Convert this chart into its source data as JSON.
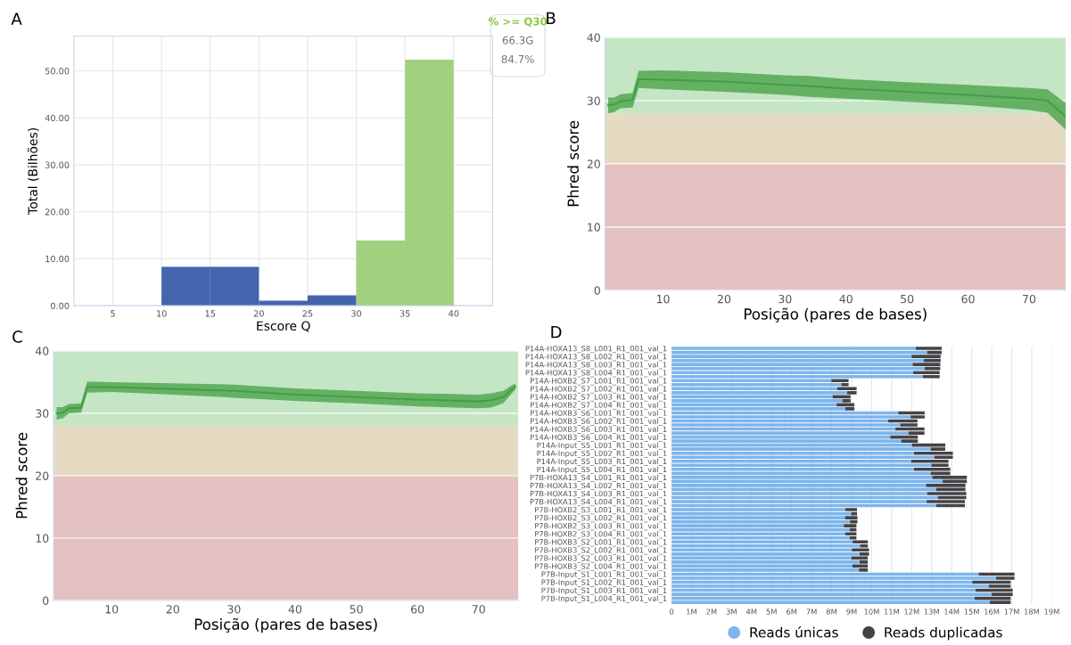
{
  "chart_data": [
    {
      "type": "histogram",
      "title": "A",
      "xlabel": "Escore Q",
      "ylabel": "Total (Bilhões)",
      "bins": [
        10,
        15,
        20,
        25,
        30,
        35,
        40
      ],
      "values": [
        8.3,
        8.3,
        1.1,
        2.2,
        13.9,
        52.4
      ],
      "colors": [
        "#4464ad",
        "#4464ad",
        "#4464ad",
        "#4464ad",
        "#a1d07e",
        "#a1d07e"
      ],
      "xlim": [
        1,
        44
      ],
      "xticks": [
        5,
        10,
        15,
        20,
        25,
        30,
        35,
        40
      ],
      "ylim": [
        0,
        57.4
      ],
      "yticks": [
        {
          "value": 0,
          "label": "0.00"
        },
        {
          "value": 10,
          "label": "10.00"
        },
        {
          "value": 20,
          "label": "20.00"
        },
        {
          "value": 30,
          "label": "30.00"
        },
        {
          "value": 40,
          "label": "40.00"
        },
        {
          "value": 50,
          "label": "50.00"
        }
      ],
      "grid": true,
      "annotations": [
        "% >= Q30",
        "66.3G",
        "84.7%"
      ]
    },
    {
      "type": "line",
      "title": "B",
      "xlabel": "Posição (pares de bases)",
      "ylabel": "Phred score",
      "series": [
        {
          "color": "#449f44",
          "x": [
            1,
            2,
            3,
            5,
            6,
            10,
            20,
            30,
            34,
            40,
            50,
            60,
            70,
            73,
            76
          ],
          "values": [
            29.3,
            29.4,
            29.9,
            30.1,
            33.4,
            33.3,
            33.0,
            32.5,
            32.3,
            31.9,
            31.4,
            30.9,
            30.3,
            30.0,
            27.5
          ],
          "lower": [
            28,
            28.2,
            28.8,
            28.9,
            32,
            31.8,
            31.4,
            30.9,
            30.6,
            30.3,
            29.8,
            29.3,
            28.5,
            28.1,
            25.4
          ],
          "upper": [
            30.5,
            30.5,
            31,
            31.2,
            34.7,
            34.8,
            34.5,
            34,
            33.9,
            33.4,
            32.9,
            32.5,
            32,
            31.8,
            29.6
          ]
        }
      ],
      "bands": [
        {
          "axis": "y",
          "from": 0,
          "to": 20,
          "color": "#e4c1c1"
        },
        {
          "axis": "y",
          "from": 20,
          "to": 28,
          "color": "#e5dbc3"
        },
        {
          "axis": "y",
          "from": 28,
          "to": 40,
          "color": "#c4e6c4"
        }
      ],
      "xlim": [
        0.5,
        76
      ],
      "xticks": [
        10,
        20,
        30,
        40,
        50,
        60,
        70
      ],
      "ylim": [
        0,
        40
      ],
      "yticks": [
        0,
        10,
        20,
        30,
        40
      ],
      "grid": "y"
    },
    {
      "type": "line",
      "title": "C",
      "xlabel": "Posição (pares de bases)",
      "ylabel": "Phred score",
      "series": [
        {
          "color": "#449f44",
          "x": [
            1,
            2,
            3,
            5,
            6,
            10,
            20,
            30,
            40,
            50,
            60,
            70,
            72,
            74,
            76
          ],
          "values": [
            30.0,
            30.1,
            30.8,
            30.9,
            34.2,
            34.2,
            33.9,
            33.6,
            33.0,
            32.6,
            32.2,
            31.9,
            32.1,
            32.6,
            34.3
          ],
          "lower": [
            29,
            29.2,
            30,
            30.1,
            33.3,
            33.4,
            33,
            32.5,
            32,
            31.6,
            31.1,
            30.8,
            30.9,
            31.6,
            33.8
          ],
          "upper": [
            31,
            31,
            31.5,
            31.6,
            35.1,
            35,
            34.8,
            34.6,
            34,
            33.6,
            33.2,
            33,
            33.2,
            33.6,
            34.8
          ]
        }
      ],
      "bands": [
        {
          "axis": "y",
          "from": 0,
          "to": 20,
          "color": "#e4c1c1"
        },
        {
          "axis": "y",
          "from": 20,
          "to": 28,
          "color": "#e5dbc3"
        },
        {
          "axis": "y",
          "from": 28,
          "to": 40,
          "color": "#c4e6c4"
        }
      ],
      "xlim": [
        0.5,
        76.5
      ],
      "xticks": [
        10,
        20,
        30,
        40,
        50,
        60,
        70
      ],
      "ylim": [
        0,
        40
      ],
      "yticks": [
        0,
        10,
        20,
        30,
        40
      ],
      "grid": "y"
    },
    {
      "type": "bar",
      "title": "D",
      "orientation": "horizontal",
      "stacked": true,
      "legend": "bottom",
      "grid": "x",
      "categories": [
        "P14A-HOXA13_S8_L001_R1_001_val_1",
        null,
        "P14A-HOXA13_S8_L002_R1_001_val_1",
        null,
        "P14A-HOXA13_S8_L003_R1_001_val_1",
        null,
        "P14A-HOXA13_S8_L004_R1_001_val_1",
        null,
        "P14A-HOXB2_S7_L001_R1_001_val_1",
        null,
        "P14A-HOXB2_S7_L002_R1_001_val_1",
        null,
        "P14A-HOXB2_S7_L003_R1_001_val_1",
        null,
        "P14A-HOXB2_S7_L004_R1_001_val_1",
        null,
        "P14A-HOXB3_S6_L001_R1_001_val_1",
        null,
        "P14A-HOXB3_S6_L002_R1_001_val_1",
        null,
        "P14A-HOXB3_S6_L003_R1_001_val_1",
        null,
        "P14A-HOXB3_S6_L004_R1_001_val_1",
        null,
        "P14A-Input_S5_L001_R1_001_val_1",
        null,
        "P14A-Input_S5_L002_R1_001_val_1",
        null,
        "P14A-Input_S5_L003_R1_001_val_1",
        null,
        "P14A-Input_S5_L004_R1_001_val_1",
        null,
        "P7B-HOXA13_S4_L001_R1_001_val_1",
        null,
        "P7B-HOXA13_S4_L002_R1_001_val_1",
        null,
        "P7B-HOXA13_S4_L003_R1_001_val_1",
        null,
        "P7B-HOXA13_S4_L004_R1_001_val_1",
        null,
        "P7B-HOXB2_S3_L001_R1_001_val_1",
        null,
        "P7B-HOXB2_S3_L002_R1_001_val_1",
        null,
        "P7B-HOXB2_S3_L003_R1_001_val_1",
        null,
        "P7B-HOXB2_S3_L004_R1_001_val_1",
        null,
        "P7B-HOXB3_S2_L001_R1_001_val_1",
        null,
        "P7B-HOXB3_S2_L002_R1_001_val_1",
        null,
        "P7B-HOXB3_S2_L003_R1_001_val_1",
        null,
        "P7B-HOXB3_S2_L004_R1_001_val_1",
        null,
        "P7B-Input_S1_L001_R1_001_val_1",
        null,
        "P7B-Input_S1_L002_R1_001_val_1",
        null,
        "P7B-Input_S1_L003_R1_001_val_1",
        null,
        "P7B-Input_S1_L004_R1_001_val_1",
        null
      ],
      "series": [
        {
          "name": "Reads únicas",
          "color": "#7cb5ec",
          "values": [
            12.21,
            12.77,
            12.0,
            12.6,
            12.05,
            12.65,
            12.08,
            12.56,
            7.99,
            8.49,
            8.29,
            8.78,
            8.05,
            8.54,
            8.25,
            8.69,
            11.33,
            11.95,
            10.83,
            11.43,
            11.19,
            11.85,
            10.93,
            11.48,
            12.02,
            12.95,
            12.12,
            13.14,
            11.98,
            12.99,
            12.12,
            12.95,
            13.03,
            13.55,
            12.72,
            13.23,
            12.78,
            13.31,
            12.75,
            13.23,
            8.69,
            8.98,
            8.67,
            8.92,
            8.61,
            8.9,
            8.68,
            8.9,
            9.05,
            9.42,
            9.01,
            9.4,
            8.99,
            9.4,
            9.04,
            9.37,
            15.35,
            16.22,
            15.03,
            15.86,
            15.19,
            16.0,
            15.15,
            15.9
          ]
        },
        {
          "name": "Reads duplicadas",
          "color": "#434348",
          "values": [
            1.29,
            0.73,
            1.45,
            0.85,
            1.38,
            0.78,
            1.32,
            0.84,
            0.86,
            0.36,
            0.96,
            0.47,
            0.9,
            0.41,
            0.89,
            0.45,
            1.32,
            0.7,
            1.46,
            0.86,
            1.45,
            0.79,
            1.38,
            0.83,
            1.66,
            0.73,
            1.94,
            0.92,
            1.86,
            0.85,
            1.81,
            0.98,
            1.73,
            1.21,
            1.97,
            1.46,
            1.95,
            1.42,
            1.91,
            1.43,
            0.58,
            0.29,
            0.62,
            0.37,
            0.63,
            0.34,
            0.56,
            0.34,
            0.76,
            0.39,
            0.86,
            0.47,
            0.82,
            0.41,
            0.77,
            0.44,
            1.79,
            0.92,
            1.92,
            1.09,
            1.86,
            1.05,
            1.8,
            1.05
          ]
        }
      ],
      "xlim": [
        0,
        19
      ],
      "xticks": [
        0,
        {
          "value": 1,
          "label": "1M"
        },
        {
          "value": 2,
          "label": "2M"
        },
        {
          "value": 3,
          "label": "3M"
        },
        {
          "value": 4,
          "label": "4M"
        },
        {
          "value": 5,
          "label": "5M"
        },
        {
          "value": 6,
          "label": "6M"
        },
        {
          "value": 7,
          "label": "7M"
        },
        {
          "value": 8,
          "label": "8M"
        },
        {
          "value": 9,
          "label": "9M"
        },
        {
          "value": 10,
          "label": "10M"
        },
        {
          "value": 11,
          "label": "11M"
        },
        {
          "value": 12,
          "label": "12M"
        },
        {
          "value": 13,
          "label": "13M"
        },
        {
          "value": 14,
          "label": "14M"
        },
        {
          "value": 15,
          "label": "15M"
        },
        {
          "value": 16,
          "label": "16M"
        },
        {
          "value": 17,
          "label": "17M"
        },
        {
          "value": 18,
          "label": "18M"
        },
        {
          "value": 19,
          "label": "19M"
        }
      ]
    }
  ]
}
